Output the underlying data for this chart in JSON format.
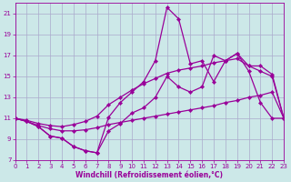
{
  "xlabel": "Windchill (Refroidissement éolien,°C)",
  "background_color": "#cce8e8",
  "grid_color": "#aaaacc",
  "line_color": "#990099",
  "xlim": [
    0,
    23
  ],
  "ylim": [
    7,
    22
  ],
  "xticks": [
    0,
    1,
    2,
    3,
    4,
    5,
    6,
    7,
    8,
    9,
    10,
    11,
    12,
    13,
    14,
    15,
    16,
    17,
    18,
    19,
    20,
    21,
    22,
    23
  ],
  "yticks": [
    7,
    9,
    11,
    13,
    15,
    17,
    19,
    21
  ],
  "line1_x": [
    0,
    1,
    2,
    3,
    4,
    5,
    6,
    7,
    8,
    9,
    10,
    11,
    12,
    13,
    14,
    15,
    16,
    17,
    18,
    19,
    20,
    21,
    22,
    23
  ],
  "line1_y": [
    11.0,
    10.7,
    10.2,
    9.3,
    9.1,
    8.3,
    7.9,
    7.7,
    11.1,
    12.5,
    13.5,
    14.5,
    16.5,
    21.6,
    20.5,
    16.2,
    16.5,
    14.5,
    16.5,
    17.2,
    16.0,
    16.0,
    15.2,
    11.0
  ],
  "line2_x": [
    0,
    1,
    2,
    3,
    4,
    5,
    6,
    7,
    8,
    9,
    10,
    11,
    12,
    13,
    14,
    15,
    16,
    17,
    18,
    19,
    20,
    21,
    22,
    23
  ],
  "line2_y": [
    11.0,
    10.7,
    10.2,
    9.3,
    9.1,
    8.3,
    7.9,
    7.7,
    9.8,
    10.5,
    11.5,
    12.0,
    13.0,
    15.0,
    14.0,
    13.5,
    14.0,
    17.0,
    16.5,
    17.2,
    15.5,
    12.5,
    11.0,
    11.0
  ],
  "line3_x": [
    0,
    1,
    2,
    3,
    4,
    5,
    6,
    7,
    8,
    9,
    10,
    11,
    12,
    13,
    14,
    15,
    16,
    17,
    18,
    19,
    20,
    21,
    22,
    23
  ],
  "line3_y": [
    11.0,
    10.8,
    10.5,
    10.3,
    10.2,
    10.4,
    10.7,
    11.2,
    12.3,
    13.0,
    13.7,
    14.3,
    14.8,
    15.3,
    15.6,
    15.8,
    16.0,
    16.3,
    16.5,
    16.7,
    16.0,
    15.5,
    15.0,
    11.0
  ],
  "line4_x": [
    0,
    1,
    2,
    3,
    4,
    5,
    6,
    7,
    8,
    9,
    10,
    11,
    12,
    13,
    14,
    15,
    16,
    17,
    18,
    19,
    20,
    21,
    22,
    23
  ],
  "line4_y": [
    11.0,
    10.7,
    10.3,
    10.0,
    9.8,
    9.8,
    9.9,
    10.1,
    10.4,
    10.6,
    10.8,
    11.0,
    11.2,
    11.4,
    11.6,
    11.8,
    12.0,
    12.2,
    12.5,
    12.7,
    13.0,
    13.2,
    13.5,
    11.0
  ]
}
